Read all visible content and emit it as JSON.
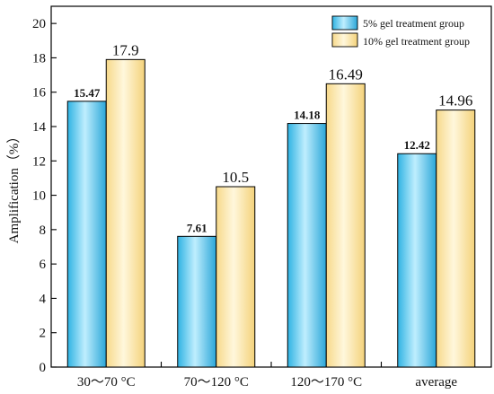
{
  "chart_data": {
    "type": "bar",
    "title": "",
    "xlabel": "",
    "ylabel": "Amplification（%）",
    "categories": [
      "30～70 °C",
      "70～120 °C",
      "120～170 °C",
      "average"
    ],
    "series": [
      {
        "name": "5% gel treatment group",
        "values": [
          15.47,
          7.61,
          14.18,
          12.42
        ],
        "color": "#5cc6ea"
      },
      {
        "name": "10% gel treatment group",
        "values": [
          17.9,
          10.5,
          16.49,
          14.96
        ],
        "color": "#fde8a8"
      }
    ],
    "data_labels": [
      [
        "15.47",
        "7.61",
        "14.18",
        "12.42"
      ],
      [
        "17.9",
        "10.5",
        "16.49",
        "14.96"
      ]
    ],
    "ylim": [
      0,
      21
    ],
    "yticks": [
      0,
      2,
      4,
      6,
      8,
      10,
      12,
      14,
      16,
      18,
      20
    ],
    "grid": false,
    "legend_position": "top-right"
  }
}
